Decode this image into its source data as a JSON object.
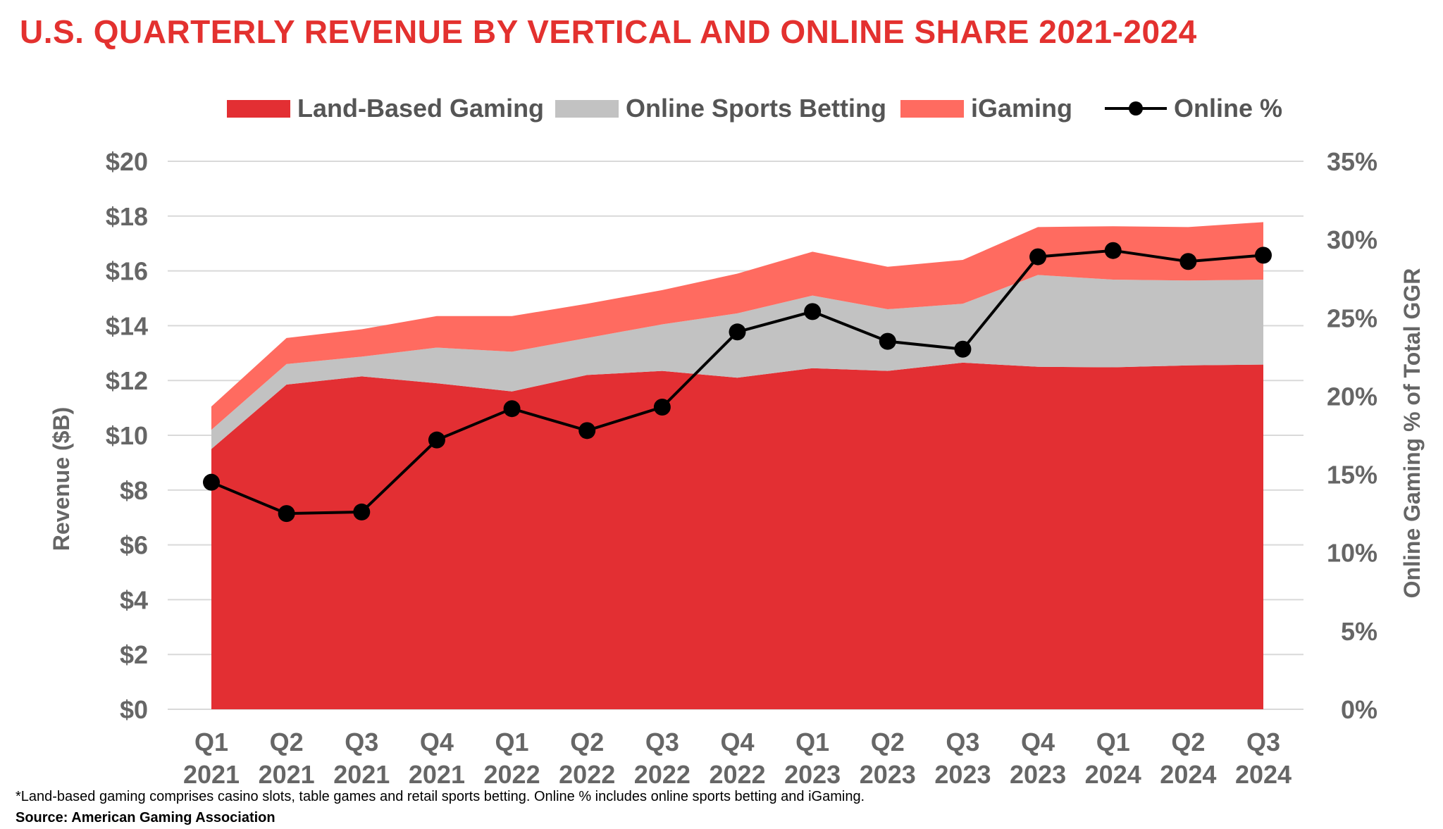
{
  "title": "U.S. QUARTERLY REVENUE BY VERTICAL AND ONLINE SHARE 2021-2024",
  "footnote": "*Land-based gaming comprises casino slots, table games and retail sports betting. Online % includes online sports betting and iGaming.",
  "source": "Source: American Gaming Association",
  "colors": {
    "land": "#e32f33",
    "sports": "#c2c2c2",
    "igaming": "#ff6b60",
    "online": "#000000",
    "grid": "#d9d9d9",
    "title": "#e3312f"
  },
  "chart_data": {
    "type": "area",
    "stacked": true,
    "categories": [
      [
        "Q1",
        "2021"
      ],
      [
        "Q2",
        "2021"
      ],
      [
        "Q3",
        "2021"
      ],
      [
        "Q4",
        "2021"
      ],
      [
        "Q1",
        "2022"
      ],
      [
        "Q2",
        "2022"
      ],
      [
        "Q3",
        "2022"
      ],
      [
        "Q4",
        "2022"
      ],
      [
        "Q1",
        "2023"
      ],
      [
        "Q2",
        "2023"
      ],
      [
        "Q3",
        "2023"
      ],
      [
        "Q4",
        "2023"
      ],
      [
        "Q1",
        "2024"
      ],
      [
        "Q2",
        "2024"
      ],
      [
        "Q3",
        "2024"
      ]
    ],
    "series": [
      {
        "name": "Land-Based Gaming",
        "axis": "left",
        "type": "area",
        "values": [
          9.5,
          11.85,
          12.15,
          11.9,
          11.6,
          12.2,
          12.35,
          12.1,
          12.45,
          12.35,
          12.65,
          12.5,
          12.48,
          12.55,
          12.58
        ]
      },
      {
        "name": "Online Sports Betting",
        "axis": "left",
        "type": "area",
        "values": [
          0.7,
          0.75,
          0.72,
          1.3,
          1.45,
          1.35,
          1.7,
          2.35,
          2.65,
          2.25,
          2.15,
          3.35,
          3.2,
          3.1,
          3.1
        ]
      },
      {
        "name": "iGaming",
        "axis": "left",
        "type": "area",
        "values": [
          0.85,
          0.95,
          1.0,
          1.15,
          1.3,
          1.25,
          1.25,
          1.45,
          1.6,
          1.55,
          1.6,
          1.75,
          1.95,
          1.95,
          2.1
        ]
      },
      {
        "name": "Online %",
        "axis": "right",
        "type": "line",
        "values": [
          14.5,
          12.5,
          12.6,
          17.2,
          19.2,
          17.8,
          19.3,
          24.1,
          25.4,
          23.5,
          23.0,
          28.9,
          29.3,
          28.6,
          29.0
        ]
      }
    ],
    "y_left": {
      "label": "Revenue ($B)",
      "min": 0,
      "max": 20,
      "step": 2,
      "ticks": [
        "$0",
        "$2",
        "$4",
        "$6",
        "$8",
        "$10",
        "$12",
        "$14",
        "$16",
        "$18",
        "$20"
      ]
    },
    "y_right": {
      "label": "Online Gaming % of Total GGR",
      "min": 0,
      "max": 35,
      "step": 5,
      "ticks": [
        "0%",
        "5%",
        "10%",
        "15%",
        "20%",
        "25%",
        "30%",
        "35%"
      ]
    },
    "grid": true,
    "legend_position": "top"
  }
}
